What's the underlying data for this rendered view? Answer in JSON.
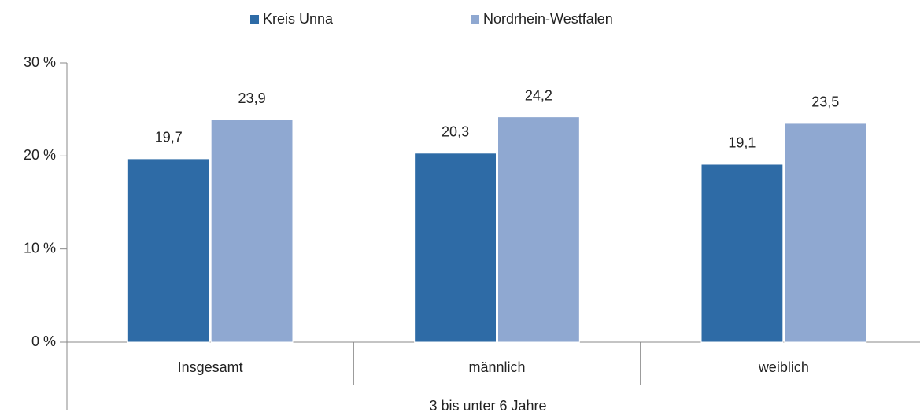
{
  "chart_data": {
    "type": "bar",
    "categories": [
      "Insgesamt",
      "männlich",
      "weiblich"
    ],
    "group_label": "3 bis unter 6 Jahre",
    "series": [
      {
        "name": "Kreis Unna",
        "color": "#2e6ba6",
        "values": [
          19.7,
          20.3,
          19.1
        ],
        "value_labels": [
          "19,7",
          "20,3",
          "19,1"
        ]
      },
      {
        "name": "Nordrhein-Westfalen",
        "color": "#8fa8d1",
        "values": [
          23.9,
          24.2,
          23.5
        ],
        "value_labels": [
          "23,9",
          "24,2",
          "23,5"
        ]
      }
    ],
    "ylim": [
      0,
      30
    ],
    "yticks": [
      {
        "value": 0,
        "label": "0 %"
      },
      {
        "value": 10,
        "label": "10 %"
      },
      {
        "value": 20,
        "label": "20 %"
      },
      {
        "value": 30,
        "label": "30 %"
      }
    ],
    "grid": false,
    "legend": "top"
  }
}
